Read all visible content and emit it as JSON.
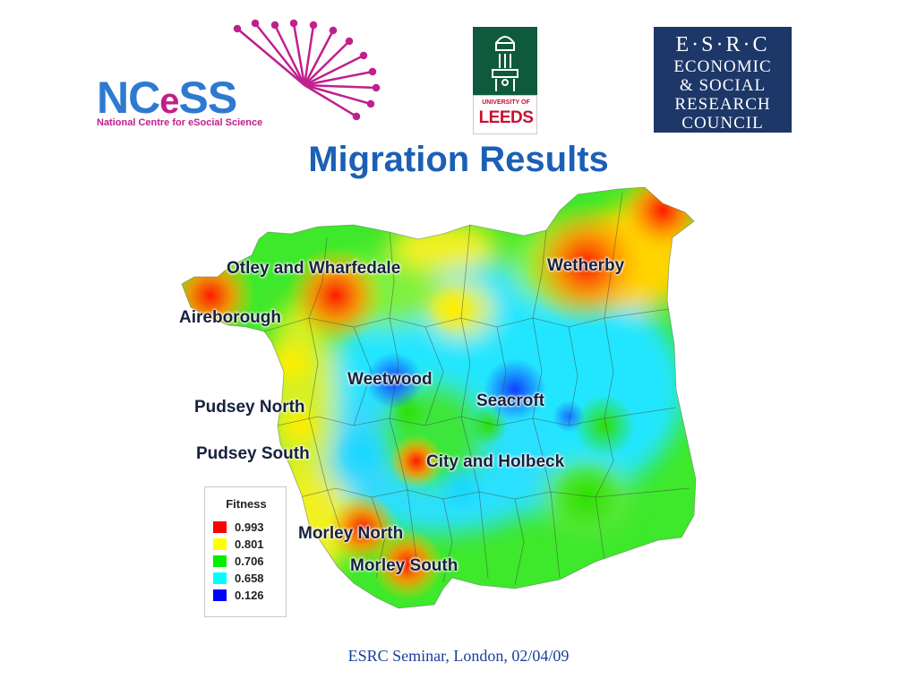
{
  "logos": {
    "ncess": {
      "name": "NCeSS",
      "name_a": "NC",
      "name_e": "e",
      "name_b": "SS",
      "subtitle": "National Centre for eSocial Science",
      "colors": {
        "blue": "#2e7ad1",
        "magenta": "#c0208c"
      }
    },
    "leeds": {
      "line1": "UNIVERSITY OF",
      "line2": "LEEDS",
      "colors": {
        "green": "#0f5a3c",
        "red": "#c8102e"
      }
    },
    "esrc": {
      "lines": [
        "E·S·R·C",
        "ECONOMIC",
        "& SOCIAL",
        "RESEARCH",
        "COUNCIL"
      ],
      "color": "#1c3768"
    }
  },
  "title": "Migration Results",
  "map": {
    "regions": [
      {
        "name": "Otley and Wharfedale"
      },
      {
        "name": "Wetherby"
      },
      {
        "name": "Aireborough"
      },
      {
        "name": "Weetwood"
      },
      {
        "name": "Seacroft"
      },
      {
        "name": "Pudsey North"
      },
      {
        "name": "Pudsey South"
      },
      {
        "name": "City and Holbeck"
      },
      {
        "name": "Morley North"
      },
      {
        "name": "Morley South"
      }
    ]
  },
  "legend": {
    "title": "Fitness",
    "items": [
      {
        "value": "0.993",
        "color": "#ff0000"
      },
      {
        "value": "0.801",
        "color": "#ffff00"
      },
      {
        "value": "0.706",
        "color": "#00ee00"
      },
      {
        "value": "0.658",
        "color": "#00ffff"
      },
      {
        "value": "0.126",
        "color": "#0000ff"
      }
    ]
  },
  "footer": "ESRC Seminar, London, 02/04/09"
}
